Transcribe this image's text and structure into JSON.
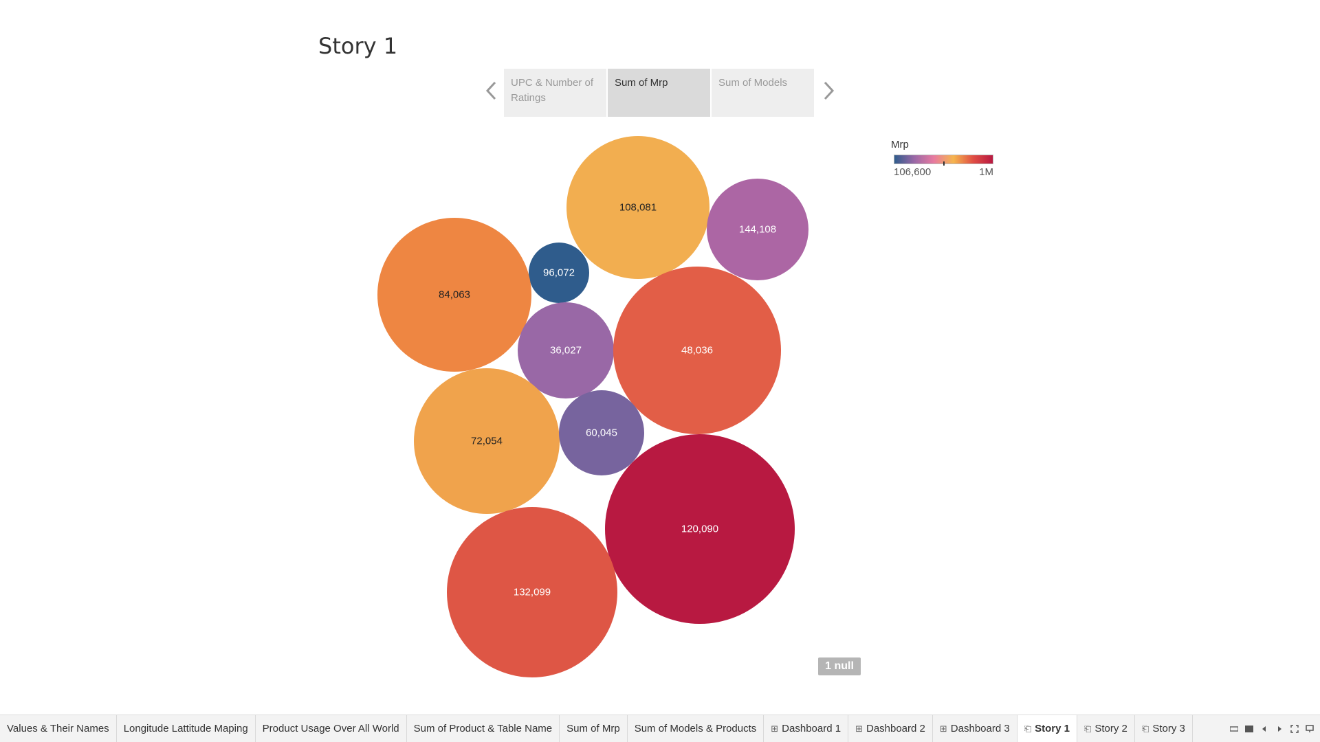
{
  "story": {
    "title": "Story 1"
  },
  "story_points": [
    {
      "label": "UPC & Number of Ratings",
      "active": false
    },
    {
      "label": "Sum of Mrp",
      "active": true
    },
    {
      "label": "Sum of Models",
      "active": false
    }
  ],
  "icons": {
    "prev": "chevron-left-icon",
    "next": "chevron-right-icon"
  },
  "legend": {
    "title": "Mrp",
    "min_label": "106,600",
    "max_label": "1M"
  },
  "null_badge": "1 null",
  "chart_data": {
    "type": "bubble",
    "title": "",
    "color_field": "Mrp",
    "bubbles": [
      {
        "label": "108,081",
        "color": "#F2AE50"
      },
      {
        "label": "144,108",
        "color": "#AC66A4"
      },
      {
        "label": "96,072",
        "color": "#2F5C8C"
      },
      {
        "label": "84,063",
        "color": "#EE8642"
      },
      {
        "label": "36,027",
        "color": "#9968A6"
      },
      {
        "label": "48,036",
        "color": "#E25E47"
      },
      {
        "label": "72,054",
        "color": "#F0A34C"
      },
      {
        "label": "60,045",
        "color": "#77649E"
      },
      {
        "label": "120,090",
        "color": "#B81941"
      },
      {
        "label": "132,099",
        "color": "#DE5645"
      }
    ]
  },
  "tabs": [
    {
      "label": "Values & Their Names",
      "icon": "",
      "active": false
    },
    {
      "label": "Longitude Lattitude Maping",
      "icon": "",
      "active": false
    },
    {
      "label": "Product Usage  Over All World",
      "icon": "",
      "active": false
    },
    {
      "label": "Sum of Product & Table Name",
      "icon": "",
      "active": false
    },
    {
      "label": "Sum of Mrp",
      "icon": "",
      "active": false
    },
    {
      "label": "Sum of Models & Products",
      "icon": "",
      "active": false
    },
    {
      "label": "Dashboard 1",
      "icon": "dashboard-icon",
      "active": false
    },
    {
      "label": "Dashboard 2",
      "icon": "dashboard-icon",
      "active": false
    },
    {
      "label": "Dashboard 3",
      "icon": "dashboard-icon",
      "active": false
    },
    {
      "label": "Story 1",
      "icon": "story-icon",
      "active": true
    },
    {
      "label": "Story 2",
      "icon": "story-icon",
      "active": false
    },
    {
      "label": "Story 3",
      "icon": "story-icon",
      "active": false
    }
  ],
  "colors": {
    "legend_gradient": [
      "#2F5C8C",
      "#9968A6",
      "#E77AA0",
      "#F5B54E",
      "#E04E44",
      "#B81941"
    ]
  }
}
